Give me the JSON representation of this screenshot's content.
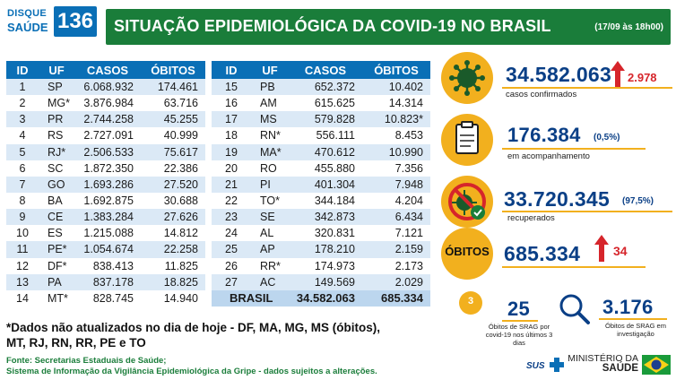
{
  "header": {
    "logo_line1": "DISQUE",
    "logo_line2": "SAÚDE",
    "logo_number": "136",
    "title": "SITUAÇÃO EPIDEMIOLÓGICA DA COVID-19 NO BRASIL",
    "date": "(17/09 às 18h00)"
  },
  "table": {
    "columns": [
      "ID",
      "UF",
      "CASOS",
      "ÓBITOS"
    ],
    "left_rows": [
      {
        "id": "1",
        "uf": "SP",
        "casos": "6.068.932",
        "obitos": "174.461"
      },
      {
        "id": "2",
        "uf": "MG*",
        "casos": "3.876.984",
        "obitos": "63.716"
      },
      {
        "id": "3",
        "uf": "PR",
        "casos": "2.744.258",
        "obitos": "45.255"
      },
      {
        "id": "4",
        "uf": "RS",
        "casos": "2.727.091",
        "obitos": "40.999"
      },
      {
        "id": "5",
        "uf": "RJ*",
        "casos": "2.506.533",
        "obitos": "75.617"
      },
      {
        "id": "6",
        "uf": "SC",
        "casos": "1.872.350",
        "obitos": "22.386"
      },
      {
        "id": "7",
        "uf": "GO",
        "casos": "1.693.286",
        "obitos": "27.520"
      },
      {
        "id": "8",
        "uf": "BA",
        "casos": "1.692.875",
        "obitos": "30.688"
      },
      {
        "id": "9",
        "uf": "CE",
        "casos": "1.383.284",
        "obitos": "27.626"
      },
      {
        "id": "10",
        "uf": "ES",
        "casos": "1.215.088",
        "obitos": "14.812"
      },
      {
        "id": "11",
        "uf": "PE*",
        "casos": "1.054.674",
        "obitos": "22.258"
      },
      {
        "id": "12",
        "uf": "DF*",
        "casos": "838.413",
        "obitos": "11.825"
      },
      {
        "id": "13",
        "uf": "PA",
        "casos": "837.178",
        "obitos": "18.825"
      },
      {
        "id": "14",
        "uf": "MT*",
        "casos": "828.745",
        "obitos": "14.940"
      }
    ],
    "right_rows": [
      {
        "id": "15",
        "uf": "PB",
        "casos": "652.372",
        "obitos": "10.402"
      },
      {
        "id": "16",
        "uf": "AM",
        "casos": "615.625",
        "obitos": "14.314"
      },
      {
        "id": "17",
        "uf": "MS",
        "casos": "579.828",
        "obitos": "10.823*"
      },
      {
        "id": "18",
        "uf": "RN*",
        "casos": "556.111",
        "obitos": "8.453"
      },
      {
        "id": "19",
        "uf": "MA*",
        "casos": "470.612",
        "obitos": "10.990"
      },
      {
        "id": "20",
        "uf": "RO",
        "casos": "455.880",
        "obitos": "7.356"
      },
      {
        "id": "21",
        "uf": "PI",
        "casos": "401.304",
        "obitos": "7.948"
      },
      {
        "id": "22",
        "uf": "TO*",
        "casos": "344.184",
        "obitos": "4.204"
      },
      {
        "id": "23",
        "uf": "SE",
        "casos": "342.873",
        "obitos": "6.434"
      },
      {
        "id": "24",
        "uf": "AL",
        "casos": "320.831",
        "obitos": "7.121"
      },
      {
        "id": "25",
        "uf": "AP",
        "casos": "178.210",
        "obitos": "2.159"
      },
      {
        "id": "26",
        "uf": "RR*",
        "casos": "174.973",
        "obitos": "2.173"
      },
      {
        "id": "27",
        "uf": "AC",
        "casos": "149.569",
        "obitos": "2.029"
      }
    ],
    "total": {
      "label": "BRASIL",
      "casos": "34.582.063",
      "obitos": "685.334"
    }
  },
  "note": "*Dados não atualizados no dia de hoje - DF, MA, MG, MS (óbitos), MT, RJ, RN, RR, PE e TO",
  "source_line1": "Fonte: Secretarias Estaduais de Saúde;",
  "source_line2": "Sistema de Informação da Vigilância Epidemiológica da Gripe - dados sujeitos a alterações.",
  "stats": {
    "confirmed": {
      "value": "34.582.063",
      "delta": "2.978",
      "label": "casos confirmados"
    },
    "monitoring": {
      "value": "176.384",
      "pct": "(0,5%)",
      "label": "em acompanhamento"
    },
    "recovered": {
      "value": "33.720.345",
      "pct": "(97,5%)",
      "label": "recuperados"
    },
    "deaths": {
      "title": "ÓBITOS",
      "value": "685.334",
      "delta": "34"
    },
    "srag_deaths": {
      "value": "25",
      "badge": "3",
      "label": "Óbitos de SRAG por covid-19 nos últimos 3 dias"
    },
    "srag_investigation": {
      "value": "3.176",
      "label": "Óbitos de SRAG em investigação"
    }
  },
  "footer": {
    "sus": "SUS",
    "ministry_line1": "MINISTÉRIO DA",
    "ministry_line2": "SAÚDE"
  },
  "colors": {
    "blue": "#0a6fb6",
    "green": "#1a7d3a",
    "yellow": "#f2b01e",
    "navy": "#0a3f86",
    "red": "#d6252b"
  }
}
